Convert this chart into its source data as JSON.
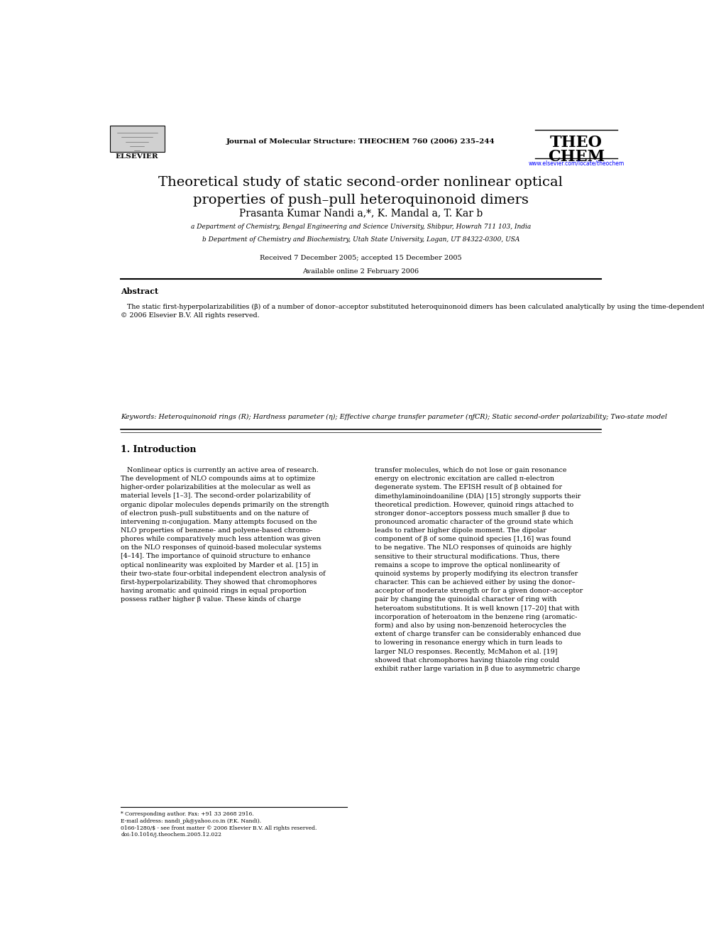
{
  "background_color": "#ffffff",
  "page_width": 9.92,
  "page_height": 13.23,
  "header": {
    "elsevier_text": "ELSEVIER",
    "journal_name": "Journal of Molecular Structure: THEOCHEM 760 (2006) 235–244",
    "journal_url": "www.elsevier.com/locate/theochem",
    "theochem_line1": "THEO",
    "theochem_line2": "CHEM"
  },
  "title": "Theoretical study of static second-order nonlinear optical\nproperties of push–pull heteroquinonoid dimers",
  "authors": "Prasanta Kumar Nandi a,*, K. Mandal a, T. Kar b",
  "affil_a": "a Department of Chemistry, Bengal Engineering and Science University, Shibpur, Howrah 711 103, India",
  "affil_b": "b Department of Chemistry and Biochemistry, Utah State University, Logan, UT 84322-0300, USA",
  "received": "Received 7 December 2005; accepted 15 December 2005",
  "available": "Available online 2 February 2006",
  "abstract_title": "Abstract",
  "keywords_text": "Keywords: Heteroquinonoid rings (R); Hardness parameter (η); Effective charge transfer parameter (ηfCR); Static second-order polarizability; Two-state model",
  "section1_title": "1. Introduction",
  "footnote1": "* Corresponding author. Fax: +91 33 2668 2916.",
  "footnote2": "E-mail address: nandi_pk@yahoo.co.in (P.K. Nandi).",
  "footnote3": "0166-1280/$ - see front matter © 2006 Elsevier B.V. All rights reserved.",
  "footnote4": "doi:10.1016/j.theochem.2005.12.022"
}
